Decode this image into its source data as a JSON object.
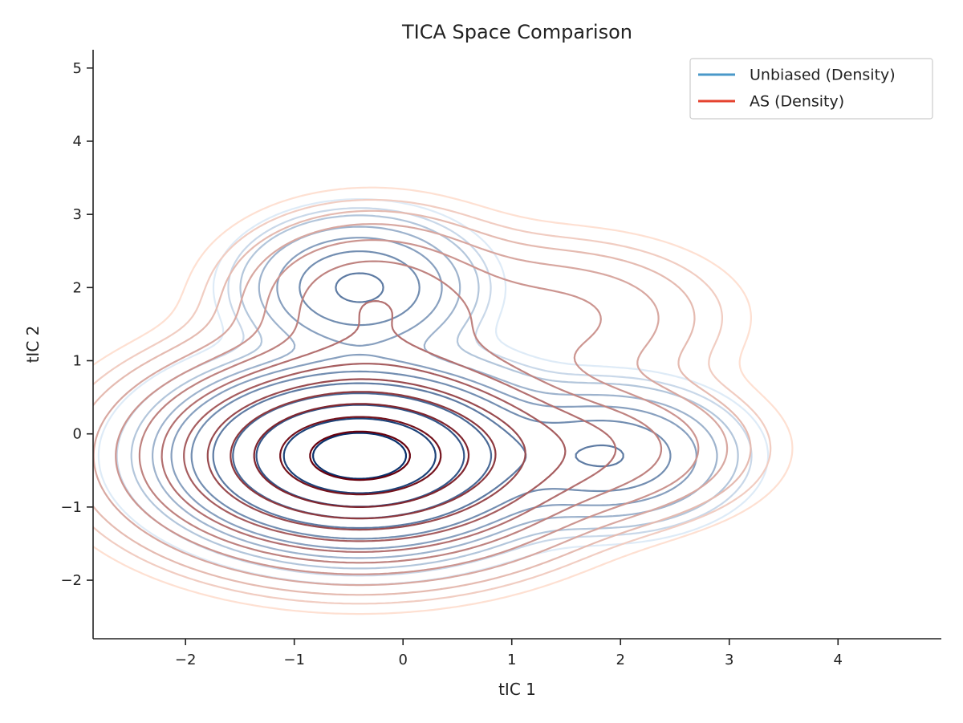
{
  "chart_data": {
    "type": "contour",
    "title": "TICA Space Comparison",
    "xlabel": "tIC 1",
    "ylabel": "tIC 2",
    "xlim": [
      -2.85,
      4.95
    ],
    "ylim": [
      -2.8,
      5.25
    ],
    "xticks": [
      -2,
      -1,
      0,
      1,
      2,
      3,
      4
    ],
    "yticks": [
      -2,
      -1,
      0,
      1,
      2,
      3,
      4,
      5
    ],
    "xtick_labels": [
      "−2",
      "−1",
      "0",
      "1",
      "2",
      "3",
      "4"
    ],
    "ytick_labels": [
      "−2",
      "−1",
      "0",
      "1",
      "2",
      "3",
      "4",
      "5"
    ],
    "grid": false,
    "legend_position": "top-right",
    "series": [
      {
        "name": "Unbiased (Density)",
        "legend_color": "#4a98c9",
        "color_light": "#deebf7",
        "color_dark": "#08306b",
        "components": [
          {
            "center": [
              -0.4,
              -0.3
            ],
            "sigma": [
              0.75,
              0.55
            ],
            "weight": 1.0
          },
          {
            "center": [
              -0.4,
              2.0
            ],
            "sigma": [
              0.5,
              0.45
            ],
            "weight": 0.22
          },
          {
            "center": [
              1.9,
              -0.3
            ],
            "sigma": [
              0.55,
              0.45
            ],
            "weight": 0.2
          }
        ],
        "levels": [
          0.006,
          0.012,
          0.02,
          0.04,
          0.07,
          0.12,
          0.2,
          0.3,
          0.45,
          0.65,
          0.85
        ]
      },
      {
        "name": "AS (Density)",
        "legend_color": "#e5432f",
        "color_light": "#fee0d2",
        "color_dark": "#67000d",
        "components": [
          {
            "center": [
              -0.4,
              -0.3
            ],
            "sigma": [
              0.9,
              0.65
            ],
            "weight": 1.0
          },
          {
            "center": [
              -0.3,
              1.8
            ],
            "sigma": [
              0.65,
              0.6
            ],
            "weight": 0.12
          },
          {
            "center": [
              1.4,
              1.6
            ],
            "sigma": [
              0.8,
              0.55
            ],
            "weight": 0.05
          },
          {
            "center": [
              1.8,
              -0.2
            ],
            "sigma": [
              0.7,
              0.5
            ],
            "weight": 0.1
          }
        ],
        "levels": [
          0.004,
          0.008,
          0.014,
          0.025,
          0.045,
          0.08,
          0.13,
          0.2,
          0.3,
          0.42,
          0.56,
          0.72,
          0.88
        ]
      }
    ]
  }
}
